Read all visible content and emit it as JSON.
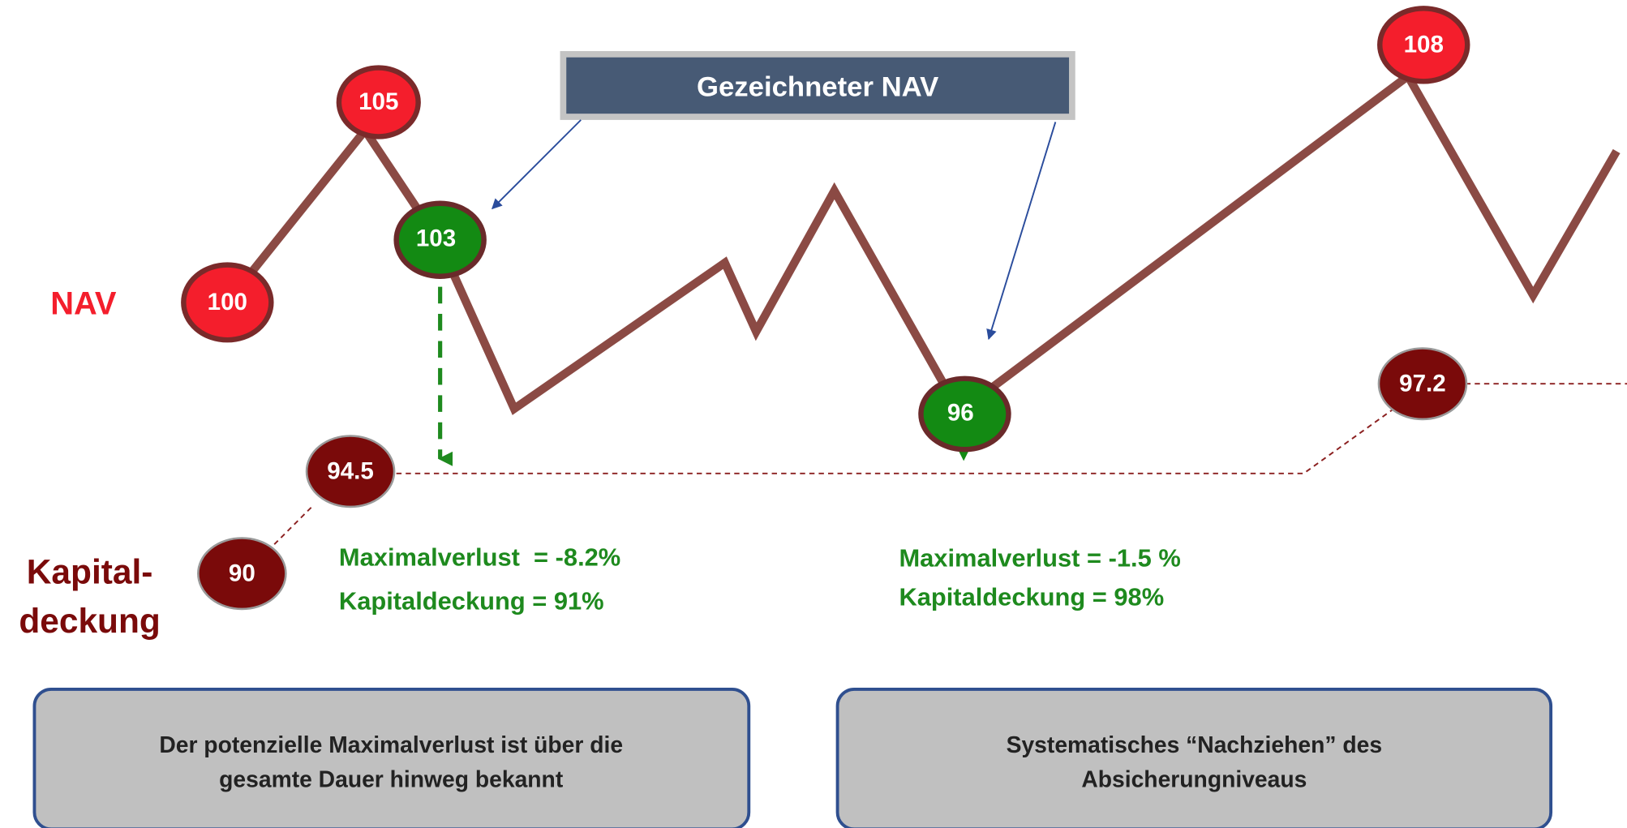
{
  "axis_labels": {
    "nav": "NAV",
    "capital": [
      "Kapital-",
      "deckung"
    ]
  },
  "callout": "Gezeichneter NAV",
  "nav_nodes": [
    "100",
    "105",
    "103",
    "96",
    "108"
  ],
  "floor_nodes": [
    "90",
    "94.5",
    "97.2"
  ],
  "results": [
    [
      "Maximalverlust  = -8.2%",
      "Kapitaldeckung = 91%"
    ],
    [
      "Maximalverlust = -1.5 %",
      "Kapitaldeckung = 98%"
    ]
  ],
  "notes": [
    [
      "Der potenzielle Maximalverlust ist über die",
      "gesamte Dauer hinweg bekannt"
    ],
    [
      "Systematisches “Nachziehen” des",
      "Absicherungniveaus"
    ]
  ]
}
